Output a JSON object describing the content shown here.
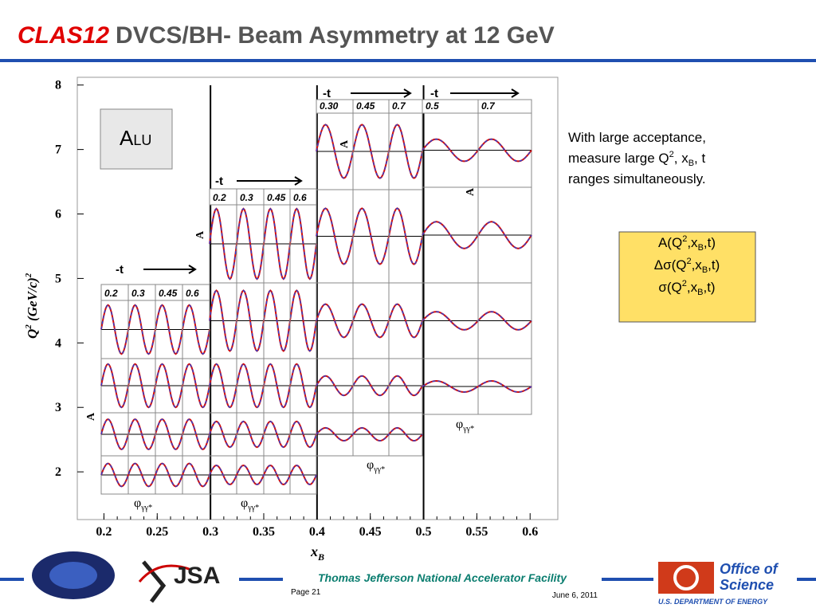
{
  "header": {
    "title_highlight": "CLAS12",
    "title": "DVCS/BH- Beam Asymmetry at 12 GeV"
  },
  "chart_data": {
    "type": "panel-grid",
    "xlabel": {
      "main": "x",
      "sub": "B"
    },
    "ylabel": {
      "main": "Q",
      "sup": "2",
      "unit": " (GeV/c)",
      "unit_sup": "2"
    },
    "xlim": [
      0.175,
      0.626
    ],
    "ylim": [
      1.26,
      8.12
    ],
    "xticks": [
      0.2,
      0.25,
      0.3,
      0.35,
      0.4,
      0.45,
      0.5,
      0.55,
      0.6
    ],
    "yticks": [
      2,
      3,
      4,
      5,
      6,
      7,
      8
    ],
    "panel_label": {
      "main": "A",
      "sub": "LU"
    },
    "asym_label": "A",
    "phi_label": {
      "main": "φ",
      "sub": "γγ*"
    },
    "groups": [
      {
        "t_label": "-t",
        "t_values": [
          "0.2",
          "0.3",
          "0.45",
          "0.6"
        ]
      },
      {
        "t_label": "-t",
        "t_values": [
          "0.2",
          "0.3",
          "0.45",
          "0.6"
        ]
      },
      {
        "t_label": "-t",
        "t_values": [
          "0.30",
          "0.45",
          "0.7"
        ]
      },
      {
        "t_label": "-t",
        "t_values": [
          "0.5",
          "0.7"
        ]
      }
    ]
  },
  "note": {
    "line1": "With large acceptance,",
    "line2": [
      "measure large Q",
      "2",
      ", x",
      "B",
      ", t"
    ],
    "line3": "ranges simultaneously."
  },
  "box": {
    "lines": [
      [
        "A(Q",
        "2",
        ",x",
        "B",
        ",t)"
      ],
      [
        "Δσ(Q",
        "2",
        ",x",
        "B",
        ",t)"
      ],
      [
        "σ(Q",
        "2",
        ",x",
        "B",
        ",t)"
      ]
    ]
  },
  "footer": {
    "lab": "Thomas Jefferson National Accelerator Facility",
    "page": "Page 21",
    "date": "June 6, 2011",
    "jsa": "JSA",
    "office": [
      "Office of",
      "Science"
    ],
    "doe": "U.S. DEPARTMENT OF ENERGY"
  }
}
